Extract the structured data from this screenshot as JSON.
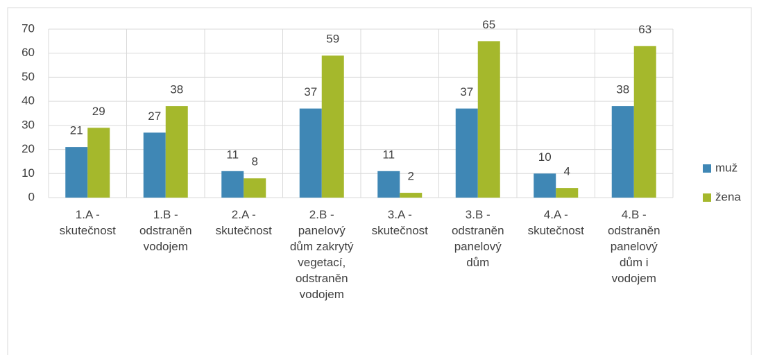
{
  "chart_data": {
    "type": "bar",
    "categories": [
      "1.A - skutečnost",
      "1.B - odstraněn vodojem",
      "2.A - skutečnost",
      "2.B - panelový dům zakrytý vegetací, odstraněn vodojem",
      "3.A - skutečnost",
      "3.B - odstraněn panelový dům",
      "4.A  - skutečnost",
      "4.B - odstraněn panelový dům i vodojem"
    ],
    "series": [
      {
        "name": "muž",
        "color": "#3f87b5",
        "values": [
          21,
          27,
          11,
          37,
          11,
          37,
          10,
          38
        ]
      },
      {
        "name": "žena",
        "color": "#a5b82c",
        "values": [
          29,
          38,
          8,
          59,
          2,
          65,
          4,
          63
        ]
      }
    ],
    "ylim": [
      0,
      70
    ],
    "yticks": [
      0,
      10,
      20,
      30,
      40,
      50,
      60,
      70
    ],
    "grid": true,
    "legend": "right"
  }
}
